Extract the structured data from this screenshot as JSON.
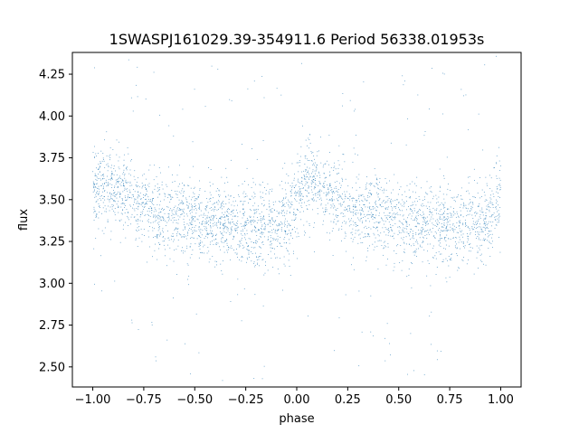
{
  "chart_data": {
    "type": "scatter",
    "title": "1SWASPJ161029.39-354911.6 Period 56338.01953s",
    "xlabel": "phase",
    "ylabel": "flux",
    "xlim": [
      -1.1,
      1.1
    ],
    "ylim": [
      2.38,
      4.38
    ],
    "xticks": [
      -1.0,
      -0.75,
      -0.5,
      -0.25,
      0.0,
      0.25,
      0.5,
      0.75,
      1.0
    ],
    "xtick_labels": [
      "−1.00",
      "−0.75",
      "−0.50",
      "−0.25",
      "0.00",
      "0.25",
      "0.50",
      "0.75",
      "1.00"
    ],
    "yticks": [
      2.5,
      2.75,
      3.0,
      3.25,
      3.5,
      3.75,
      4.0,
      4.25
    ],
    "ytick_labels": [
      "2.50",
      "2.75",
      "3.00",
      "3.25",
      "3.50",
      "3.75",
      "4.00",
      "4.25"
    ],
    "grid": false,
    "series": [
      {
        "color": "#1f77b4",
        "x_range": [
          -1.0,
          1.0
        ],
        "binned_median_flux": {
          "phase": [
            -1.0,
            -0.9,
            -0.8,
            -0.7,
            -0.6,
            -0.5,
            -0.4,
            -0.3,
            -0.2,
            -0.1,
            -0.05,
            0.0,
            0.05,
            0.1,
            0.2,
            0.3,
            0.4,
            0.5,
            0.6,
            0.7,
            0.8,
            0.9,
            0.95,
            1.0
          ],
          "flux": [
            3.58,
            3.57,
            3.49,
            3.42,
            3.4,
            3.37,
            3.35,
            3.34,
            3.34,
            3.33,
            3.4,
            3.52,
            3.62,
            3.57,
            3.49,
            3.42,
            3.4,
            3.37,
            3.35,
            3.35,
            3.34,
            3.33,
            3.4,
            3.55
          ]
        },
        "scatter_spread": 0.12
      }
    ]
  }
}
